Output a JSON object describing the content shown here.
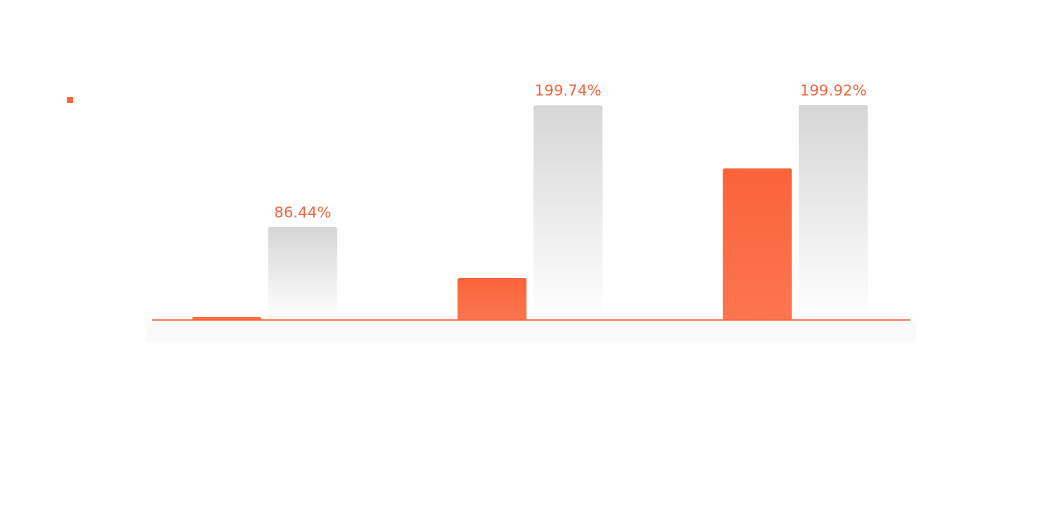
{
  "chart_data": {
    "type": "bar",
    "categories": [
      null,
      null,
      null
    ],
    "series": [
      {
        "color": "#fb6338",
        "values": [
          2.8,
          39,
          141
        ]
      },
      {
        "color": "#d6d6d6",
        "values": [
          86.44,
          199.74,
          199.92
        ],
        "value_labels": [
          "86.44%",
          "199.74%",
          "199.92%"
        ],
        "label_color": "#f4623a"
      }
    ]
  }
}
